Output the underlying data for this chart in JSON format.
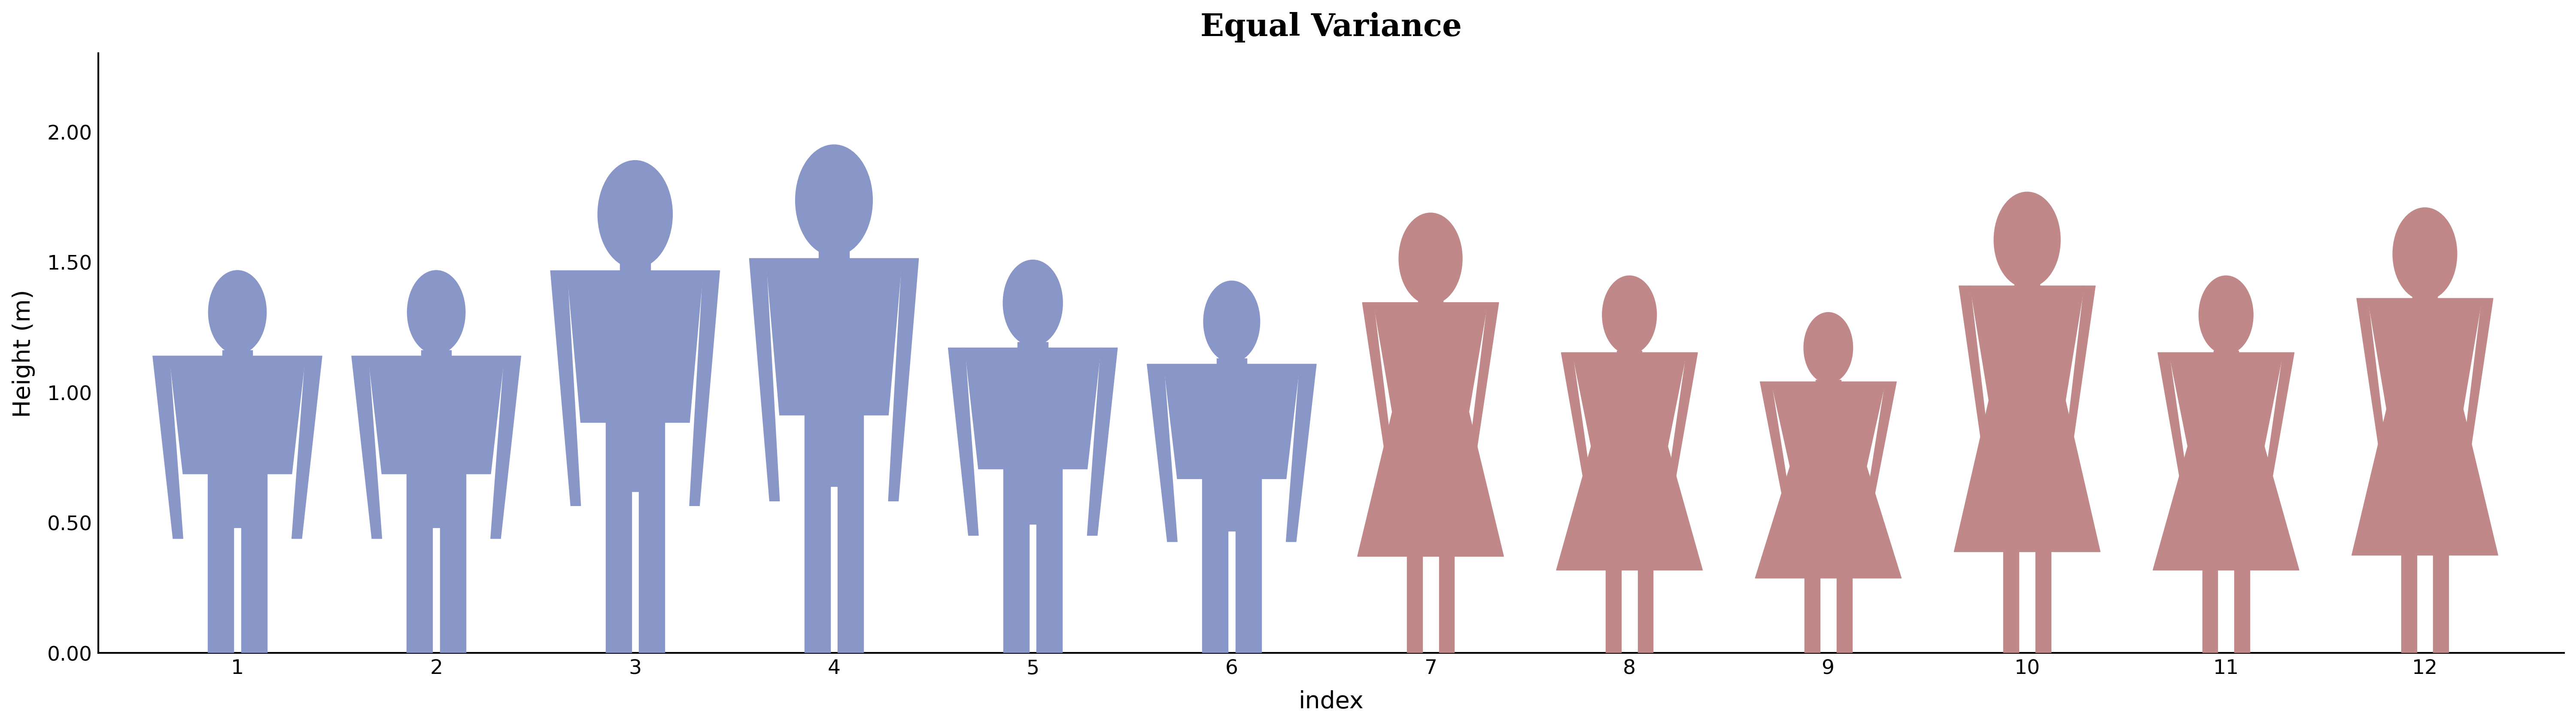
{
  "title": "Equal Variance",
  "xlabel": "index",
  "ylabel": "Height (m)",
  "xlim": [
    0.3,
    12.7
  ],
  "ylim": [
    0.0,
    2.3
  ],
  "yticks": [
    0.0,
    0.5,
    1.0,
    1.5,
    2.0
  ],
  "xticks": [
    1,
    2,
    3,
    4,
    5,
    6,
    7,
    8,
    9,
    10,
    11,
    12
  ],
  "male_color": "#8896C8",
  "female_color": "#C08888",
  "male_heights": [
    1.46,
    1.46,
    1.88,
    1.94,
    1.5,
    1.42
  ],
  "female_heights": [
    1.68,
    1.44,
    1.3,
    1.76,
    1.44,
    1.7
  ],
  "male_indices": [
    1,
    2,
    3,
    4,
    5,
    6
  ],
  "female_indices": [
    7,
    8,
    9,
    10,
    11,
    12
  ],
  "title_fontsize": 52,
  "label_fontsize": 40,
  "tick_fontsize": 34,
  "background_color": "#ffffff",
  "spine_color": "#000000"
}
